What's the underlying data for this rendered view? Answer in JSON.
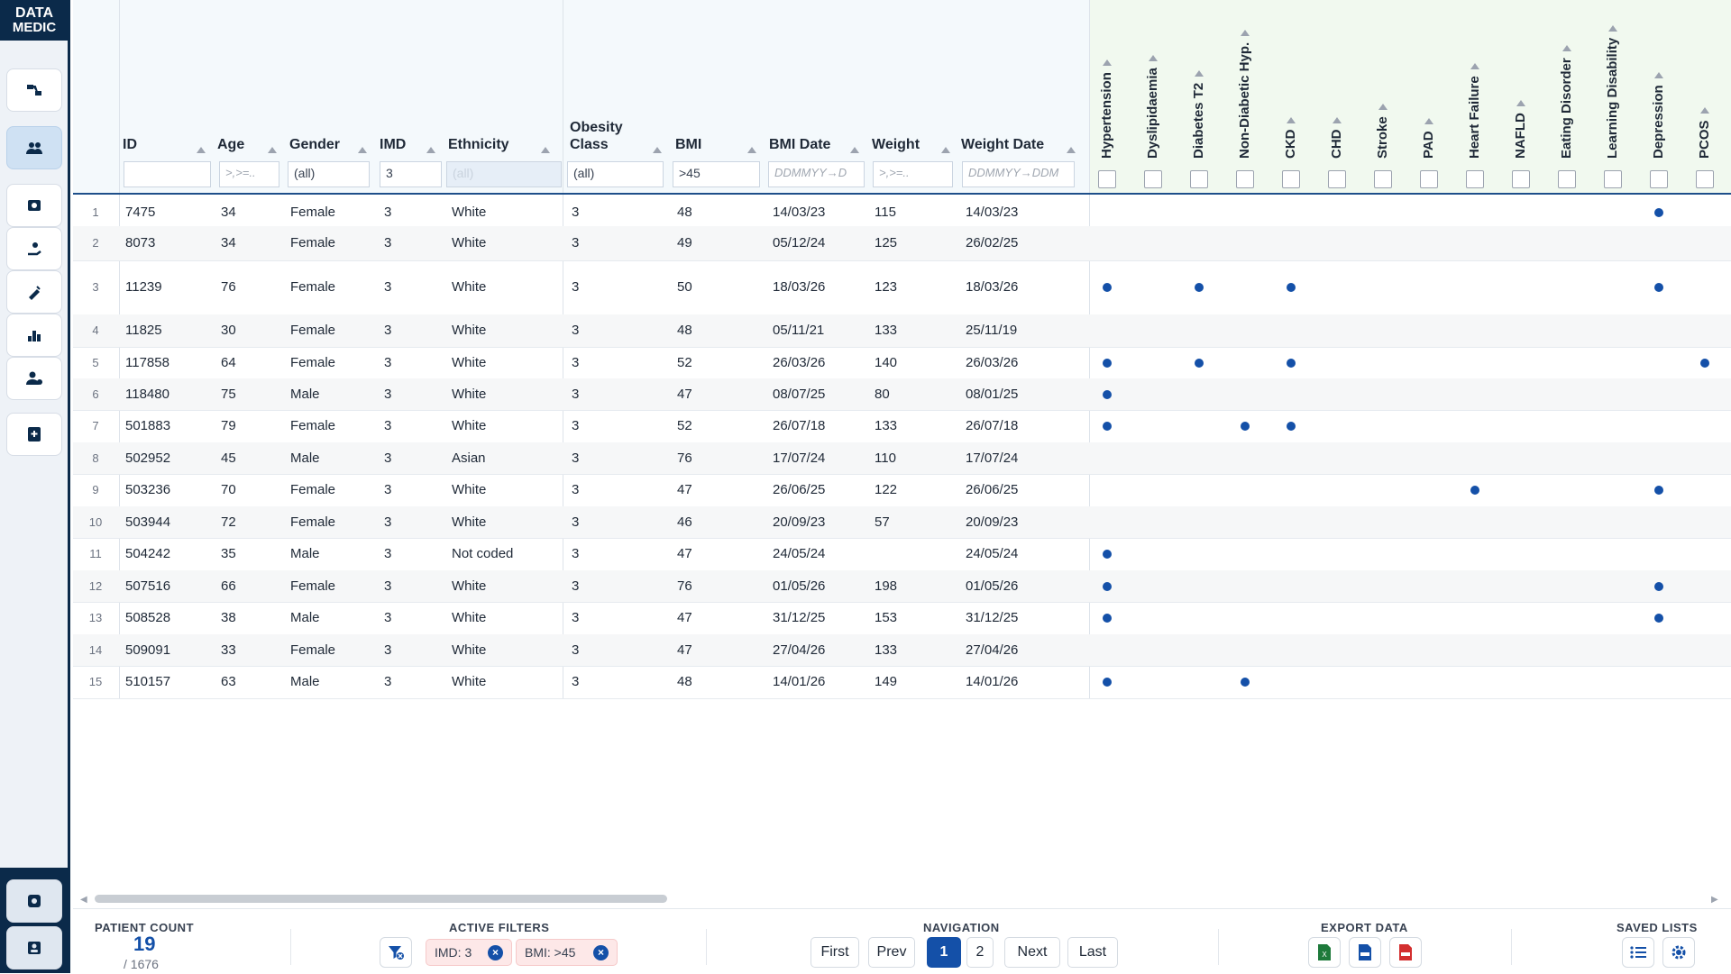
{
  "app": {
    "logo_line1": "DATA",
    "logo_line2": "MEDIC"
  },
  "sidebar": {
    "items": [
      {
        "name": "pathway-icon"
      },
      {
        "name": "patients-icon",
        "active": true
      },
      {
        "name": "clinical-icon"
      },
      {
        "name": "referral-icon"
      },
      {
        "name": "injection-icon"
      },
      {
        "name": "stats-icon"
      },
      {
        "name": "user-settings-icon"
      },
      {
        "name": "medical-record-icon"
      }
    ],
    "bottom": [
      {
        "name": "settings-icon"
      },
      {
        "name": "profile-icon"
      }
    ]
  },
  "columns": [
    {
      "key": "id",
      "label": "ID",
      "filter": "",
      "placeholder": ""
    },
    {
      "key": "age",
      "label": "Age",
      "filter": "",
      "placeholder": ">,>=.."
    },
    {
      "key": "gender",
      "label": "Gender",
      "filter": "(all)",
      "placeholder": ""
    },
    {
      "key": "imd",
      "label": "IMD",
      "filter": "3",
      "placeholder": ""
    },
    {
      "key": "ethnicity",
      "label": "Ethnicity",
      "filter": "(all)",
      "placeholder": ""
    },
    {
      "key": "obesity",
      "label": "Obesity Class",
      "filter": "(all)",
      "placeholder": ""
    },
    {
      "key": "bmi",
      "label": "BMI",
      "filter": ">45",
      "placeholder": ""
    },
    {
      "key": "bmi_date",
      "label": "BMI Date",
      "filter": "",
      "placeholder": "DDMMYY→D"
    },
    {
      "key": "weight",
      "label": "Weight",
      "filter": "",
      "placeholder": ">,>=.."
    },
    {
      "key": "weight_date",
      "label": "Weight Date",
      "filter": "",
      "placeholder": "DDMMYY→DDM"
    }
  ],
  "conditions": [
    "Hypertension",
    "Dyslipidaemia",
    "Diabetes T2",
    "Non-Diabetic Hyp.",
    "CKD",
    "CHD",
    "Stroke",
    "PAD",
    "Heart Failure",
    "NAFLD",
    "Eating Disorder",
    "Learning Disability",
    "Depression",
    "PCOS"
  ],
  "rows": [
    {
      "n": "1",
      "id": "7475",
      "age": "34",
      "gender": "Female",
      "imd": "3",
      "ethnicity": "White",
      "obesity": "3",
      "bmi": "48",
      "bmi_date": "14/03/23",
      "weight": "115",
      "weight_date": "14/03/23",
      "flags": [
        12
      ]
    },
    {
      "n": "2",
      "id": "8073",
      "age": "34",
      "gender": "Female",
      "imd": "3",
      "ethnicity": "White",
      "obesity": "3",
      "bmi": "49",
      "bmi_date": "05/12/24",
      "weight": "125",
      "weight_date": "26/02/25",
      "flags": []
    },
    {
      "n": "3",
      "id": "11239",
      "age": "76",
      "gender": "Female",
      "imd": "3",
      "ethnicity": "White",
      "obesity": "3",
      "bmi": "50",
      "bmi_date": "18/03/26",
      "weight": "123",
      "weight_date": "18/03/26",
      "flags": [
        0,
        2,
        4,
        12
      ]
    },
    {
      "n": "4",
      "id": "11825",
      "age": "30",
      "gender": "Female",
      "imd": "3",
      "ethnicity": "White",
      "obesity": "3",
      "bmi": "48",
      "bmi_date": "05/11/21",
      "weight": "133",
      "weight_date": "25/11/19",
      "flags": []
    },
    {
      "n": "5",
      "id": "117858",
      "age": "64",
      "gender": "Female",
      "imd": "3",
      "ethnicity": "White",
      "obesity": "3",
      "bmi": "52",
      "bmi_date": "26/03/26",
      "weight": "140",
      "weight_date": "26/03/26",
      "flags": [
        0,
        2,
        4,
        13
      ]
    },
    {
      "n": "6",
      "id": "118480",
      "age": "75",
      "gender": "Male",
      "imd": "3",
      "ethnicity": "White",
      "obesity": "3",
      "bmi": "47",
      "bmi_date": "08/07/25",
      "weight": "80",
      "weight_date": "08/01/25",
      "flags": [
        0
      ]
    },
    {
      "n": "7",
      "id": "501883",
      "age": "79",
      "gender": "Female",
      "imd": "3",
      "ethnicity": "White",
      "obesity": "3",
      "bmi": "52",
      "bmi_date": "26/07/18",
      "weight": "133",
      "weight_date": "26/07/18",
      "flags": [
        0,
        3,
        4
      ]
    },
    {
      "n": "8",
      "id": "502952",
      "age": "45",
      "gender": "Male",
      "imd": "3",
      "ethnicity": "Asian",
      "obesity": "3",
      "bmi": "76",
      "bmi_date": "17/07/24",
      "weight": "110",
      "weight_date": "17/07/24",
      "flags": []
    },
    {
      "n": "9",
      "id": "503236",
      "age": "70",
      "gender": "Female",
      "imd": "3",
      "ethnicity": "White",
      "obesity": "3",
      "bmi": "47",
      "bmi_date": "26/06/25",
      "weight": "122",
      "weight_date": "26/06/25",
      "flags": [
        8,
        12
      ]
    },
    {
      "n": "10",
      "id": "503944",
      "age": "72",
      "gender": "Female",
      "imd": "3",
      "ethnicity": "White",
      "obesity": "3",
      "bmi": "46",
      "bmi_date": "20/09/23",
      "weight": "57",
      "weight_date": "20/09/23",
      "flags": []
    },
    {
      "n": "11",
      "id": "504242",
      "age": "35",
      "gender": "Male",
      "imd": "3",
      "ethnicity": "Not coded",
      "obesity": "3",
      "bmi": "47",
      "bmi_date": "24/05/24",
      "weight": "",
      "weight_date": "24/05/24",
      "flags": [
        0
      ]
    },
    {
      "n": "12",
      "id": "507516",
      "age": "66",
      "gender": "Female",
      "imd": "3",
      "ethnicity": "White",
      "obesity": "3",
      "bmi": "76",
      "bmi_date": "01/05/26",
      "weight": "198",
      "weight_date": "01/05/26",
      "flags": [
        0,
        12
      ]
    },
    {
      "n": "13",
      "id": "508528",
      "age": "38",
      "gender": "Male",
      "imd": "3",
      "ethnicity": "White",
      "obesity": "3",
      "bmi": "47",
      "bmi_date": "31/12/25",
      "weight": "153",
      "weight_date": "31/12/25",
      "flags": [
        0,
        12
      ]
    },
    {
      "n": "14",
      "id": "509091",
      "age": "33",
      "gender": "Female",
      "imd": "3",
      "ethnicity": "White",
      "obesity": "3",
      "bmi": "47",
      "bmi_date": "27/04/26",
      "weight": "133",
      "weight_date": "27/04/26",
      "flags": []
    },
    {
      "n": "15",
      "id": "510157",
      "age": "63",
      "gender": "Male",
      "imd": "3",
      "ethnicity": "White",
      "obesity": "3",
      "bmi": "48",
      "bmi_date": "14/01/26",
      "weight": "149",
      "weight_date": "14/01/26",
      "flags": [
        0,
        3
      ]
    }
  ],
  "footer": {
    "patient_count_title": "PATIENT COUNT",
    "patient_count": "19",
    "patient_total": "/ 1676",
    "active_filters_title": "ACTIVE FILTERS",
    "filters": [
      {
        "label": "IMD: 3"
      },
      {
        "label": "BMI: >45"
      }
    ],
    "navigation_title": "NAVIGATION",
    "nav": {
      "first": "First",
      "prev": "Prev",
      "pages": [
        "1",
        "2"
      ],
      "current": "1",
      "next": "Next",
      "last": "Last"
    },
    "export_title": "EXPORT DATA",
    "export": [
      "excel-icon",
      "csv-icon",
      "pdf-icon"
    ],
    "saved_lists_title": "SAVED LISTS"
  },
  "colors": {
    "accent": "#1450a8",
    "sidebar_dark": "#0b2a4a",
    "chip_bg": "#fde8e8"
  }
}
